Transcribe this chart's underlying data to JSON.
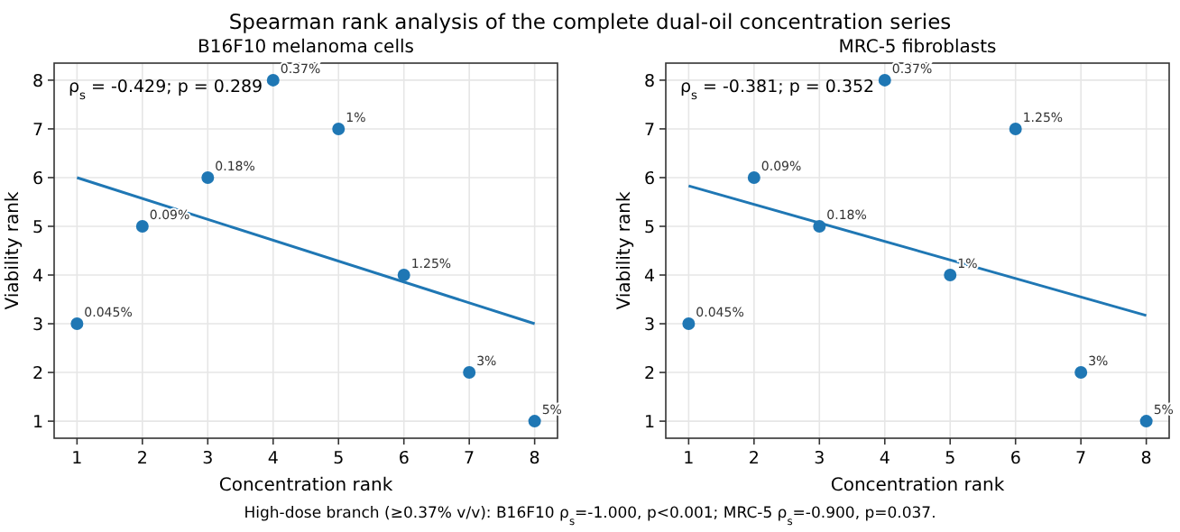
{
  "chart_data": [
    {
      "type": "scatter",
      "title": "B16F10 melanoma cells",
      "xlabel": "Concentration rank",
      "ylabel": "Viability rank",
      "xlim": [
        0.65,
        8.35
      ],
      "ylim": [
        0.65,
        8.35
      ],
      "xticks": [
        1,
        2,
        3,
        4,
        5,
        6,
        7,
        8
      ],
      "yticks": [
        1,
        2,
        3,
        4,
        5,
        6,
        7,
        8
      ],
      "grid": true,
      "series": [
        {
          "color": "#1f77b4",
          "marker": "circle",
          "x": [
            1,
            2,
            3,
            4,
            5,
            6,
            7,
            8
          ],
          "values": [
            3,
            5,
            6,
            8,
            7,
            4,
            2,
            1
          ]
        },
        {
          "type": "line",
          "color": "#1f77b4",
          "x": [
            1,
            8
          ],
          "values": [
            6,
            3
          ]
        }
      ],
      "annotations": [
        "ρ$_{s}$ = -0.429; p = 0.289",
        "Spearman rank analysis of the complete dual-oil concentration series",
        {
          "text": "0.045%",
          "x": 1,
          "y": 3
        },
        {
          "text": "0.09%",
          "x": 2,
          "y": 5
        },
        {
          "text": "0.18%",
          "x": 3,
          "y": 6
        },
        {
          "text": "0.37%",
          "x": 4,
          "y": 8
        },
        {
          "text": "1%",
          "x": 5,
          "y": 7
        },
        {
          "text": "1.25%",
          "x": 6,
          "y": 4
        },
        {
          "text": "3%",
          "x": 7,
          "y": 2
        },
        {
          "text": "5%",
          "x": 8,
          "y": 1
        }
      ]
    },
    {
      "type": "scatter",
      "title": "MRC-5 fibroblasts",
      "xlabel": "Concentration rank",
      "ylabel": "Viability rank",
      "xlim": [
        0.65,
        8.35
      ],
      "ylim": [
        0.65,
        8.35
      ],
      "xticks": [
        1,
        2,
        3,
        4,
        5,
        6,
        7,
        8
      ],
      "yticks": [
        1,
        2,
        3,
        4,
        5,
        6,
        7,
        8
      ],
      "grid": true,
      "series": [
        {
          "color": "#1f77b4",
          "marker": "circle",
          "x": [
            1,
            2,
            3,
            4,
            5,
            6,
            7,
            8
          ],
          "values": [
            3,
            6,
            5,
            8,
            4,
            7,
            2,
            1
          ]
        },
        {
          "type": "line",
          "color": "#1f77b4",
          "x": [
            1,
            8
          ],
          "values": [
            5.83,
            3.17
          ]
        }
      ],
      "annotations": [
        "ρ$_{s}$ = -0.381; p = 0.352",
        "High-dose branch (≥0.37% v/v): B16F10 ρ$_{s}$=-1.000, p<0.001; MRC-5 ρ$_{s}$=-0.900, p=0.037.",
        {
          "text": "0.045%",
          "x": 1,
          "y": 3
        },
        {
          "text": "0.09%",
          "x": 2,
          "y": 6
        },
        {
          "text": "0.18%",
          "x": 3,
          "y": 5
        },
        {
          "text": "0.37%",
          "x": 4,
          "y": 8
        },
        {
          "text": "1%",
          "x": 5,
          "y": 4
        },
        {
          "text": "1.25%",
          "x": 6,
          "y": 7
        },
        {
          "text": "3%",
          "x": 7,
          "y": 2
        },
        {
          "text": "5%",
          "x": 8,
          "y": 1
        }
      ]
    }
  ]
}
